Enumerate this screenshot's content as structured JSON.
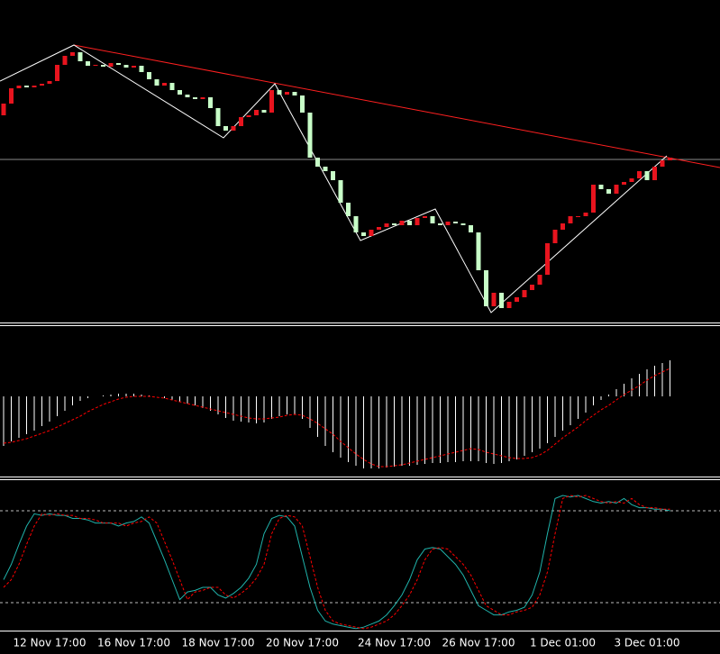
{
  "chart_data": [
    {
      "type": "candlestick",
      "up_color": "#e8141e",
      "down_color": "#c8ffc8",
      "ylim": [
        0,
        358
      ],
      "categories": [
        null,
        null,
        null,
        null,
        null,
        null,
        "12 Nov 17:00",
        null,
        null,
        null,
        null,
        null,
        null,
        null,
        null,
        null,
        null,
        "16 Nov 17:00",
        null,
        null,
        null,
        null,
        null,
        null,
        null,
        null,
        null,
        null,
        "18 Nov 17:00",
        null,
        null,
        null,
        null,
        null,
        null,
        null,
        null,
        null,
        null,
        "20 Nov 17:00",
        null,
        null,
        null,
        null,
        null,
        null,
        null,
        null,
        null,
        null,
        null,
        "24 Nov 17:00",
        null,
        null,
        null,
        null,
        null,
        null,
        null,
        null,
        null,
        null,
        "26 Nov 17:00",
        null,
        null,
        null,
        null,
        null,
        null,
        null,
        null,
        null,
        null,
        "1 Dec 01:00",
        null,
        null,
        null,
        null,
        null,
        null,
        null,
        null,
        null,
        null,
        "3 Dec 01:00",
        null,
        null,
        null
      ],
      "open": [
        230,
        243,
        260,
        263,
        261,
        263,
        265,
        268,
        286,
        296,
        300,
        290,
        285,
        286,
        284,
        288,
        286,
        283,
        285,
        278,
        270,
        263,
        266,
        258,
        253,
        250,
        248,
        250,
        238,
        218,
        213,
        218,
        228,
        230,
        236,
        233,
        258,
        253,
        256,
        252,
        233,
        183,
        173,
        168,
        158,
        133,
        118,
        100,
        96,
        103,
        106,
        110,
        108,
        113,
        108,
        116,
        118,
        110,
        108,
        112,
        110,
        108,
        100,
        58,
        18,
        33,
        16,
        23,
        28,
        36,
        42,
        53,
        88,
        103,
        110,
        118,
        118,
        122,
        153,
        148,
        143,
        153,
        156,
        160,
        168,
        158,
        173,
        180
      ],
      "close": [
        243,
        260,
        263,
        261,
        263,
        265,
        268,
        286,
        296,
        300,
        290,
        285,
        286,
        284,
        288,
        286,
        283,
        285,
        278,
        270,
        263,
        266,
        258,
        253,
        250,
        248,
        250,
        238,
        218,
        213,
        218,
        228,
        230,
        236,
        233,
        258,
        253,
        256,
        252,
        233,
        183,
        173,
        168,
        158,
        133,
        118,
        100,
        96,
        103,
        106,
        110,
        108,
        113,
        108,
        116,
        118,
        110,
        108,
        112,
        110,
        108,
        100,
        58,
        18,
        33,
        16,
        23,
        28,
        36,
        42,
        53,
        88,
        103,
        110,
        118,
        118,
        122,
        153,
        148,
        143,
        153,
        156,
        160,
        168,
        158,
        173,
        180,
        183
      ]
    },
    {
      "type": "macd",
      "ylim": [
        -90,
        78
      ],
      "series": [
        {
          "kind": "bar",
          "color": "#ffffff",
          "values": [
            -55,
            -50,
            -46,
            -42,
            -38,
            -33,
            -28,
            -22,
            -16,
            -10,
            -5,
            -2,
            0,
            1,
            2,
            3,
            3,
            3,
            2,
            1,
            0,
            -2,
            -4,
            -6,
            -8,
            -10,
            -13,
            -16,
            -20,
            -24,
            -27,
            -28,
            -29,
            -30,
            -29,
            -25,
            -22,
            -20,
            -20,
            -25,
            -35,
            -45,
            -55,
            -62,
            -68,
            -73,
            -77,
            -80,
            -80,
            -80,
            -79,
            -78,
            -77,
            -77,
            -76,
            -75,
            -74,
            -74,
            -73,
            -73,
            -72,
            -72,
            -72,
            -74,
            -75,
            -74,
            -72,
            -70,
            -66,
            -62,
            -58,
            -52,
            -45,
            -38,
            -32,
            -25,
            -18,
            -10,
            -4,
            2,
            8,
            14,
            20,
            25,
            30,
            34,
            37,
            40
          ]
        },
        {
          "kind": "line",
          "dashed": true,
          "color": "#ff0000",
          "values": [
            -52,
            -51,
            -49,
            -47,
            -44,
            -41,
            -38,
            -34,
            -30,
            -26,
            -22,
            -17,
            -13,
            -9,
            -6,
            -3,
            -1,
            0,
            0,
            0,
            -1,
            -2,
            -4,
            -6,
            -8,
            -10,
            -12,
            -14,
            -16,
            -18,
            -20,
            -22,
            -24,
            -25,
            -25,
            -24,
            -23,
            -21,
            -20,
            -21,
            -25,
            -30,
            -36,
            -42,
            -50,
            -57,
            -64,
            -70,
            -75,
            -78,
            -78,
            -77,
            -76,
            -74,
            -72,
            -70,
            -68,
            -66,
            -64,
            -62,
            -60,
            -58,
            -59,
            -62,
            -64,
            -66,
            -68,
            -69,
            -69,
            -68,
            -65,
            -60,
            -53,
            -46,
            -40,
            -34,
            -27,
            -21,
            -15,
            -10,
            -4,
            2,
            7,
            12,
            18,
            23,
            27,
            31
          ]
        }
      ]
    },
    {
      "type": "line",
      "ylim": [
        0,
        100
      ],
      "levels": [
        20,
        80
      ],
      "series": [
        {
          "color": "#20b2aa",
          "dashed": false,
          "values": [
            35,
            45,
            58,
            70,
            78,
            77,
            78,
            77,
            77,
            75,
            75,
            74,
            72,
            72,
            72,
            70,
            72,
            73,
            76,
            72,
            60,
            48,
            35,
            22,
            27,
            28,
            30,
            30,
            25,
            23,
            26,
            30,
            36,
            45,
            65,
            75,
            77,
            76,
            70,
            50,
            30,
            15,
            8,
            6,
            5,
            4,
            3,
            4,
            6,
            8,
            12,
            18,
            25,
            35,
            48,
            55,
            56,
            55,
            50,
            45,
            38,
            28,
            18,
            15,
            12,
            12,
            14,
            15,
            17,
            25,
            40,
            65,
            88,
            90,
            89,
            90,
            88,
            86,
            85,
            86,
            85,
            88,
            84,
            82,
            82,
            81,
            81,
            80
          ]
        },
        {
          "color": "#ff0000",
          "dashed": true,
          "values": [
            30,
            35,
            45,
            58,
            70,
            78,
            77,
            78,
            77,
            77,
            75,
            75,
            74,
            72,
            72,
            72,
            70,
            72,
            73,
            76,
            72,
            60,
            48,
            35,
            22,
            27,
            28,
            30,
            30,
            25,
            23,
            26,
            30,
            36,
            45,
            65,
            75,
            77,
            76,
            70,
            50,
            30,
            15,
            8,
            6,
            5,
            4,
            3,
            4,
            6,
            8,
            12,
            18,
            25,
            35,
            48,
            55,
            56,
            55,
            50,
            45,
            38,
            28,
            18,
            15,
            12,
            12,
            14,
            15,
            17,
            25,
            40,
            65,
            88,
            90,
            89,
            90,
            88,
            86,
            85,
            86,
            85,
            88,
            84,
            82,
            82,
            81,
            81
          ]
        }
      ]
    }
  ]
}
